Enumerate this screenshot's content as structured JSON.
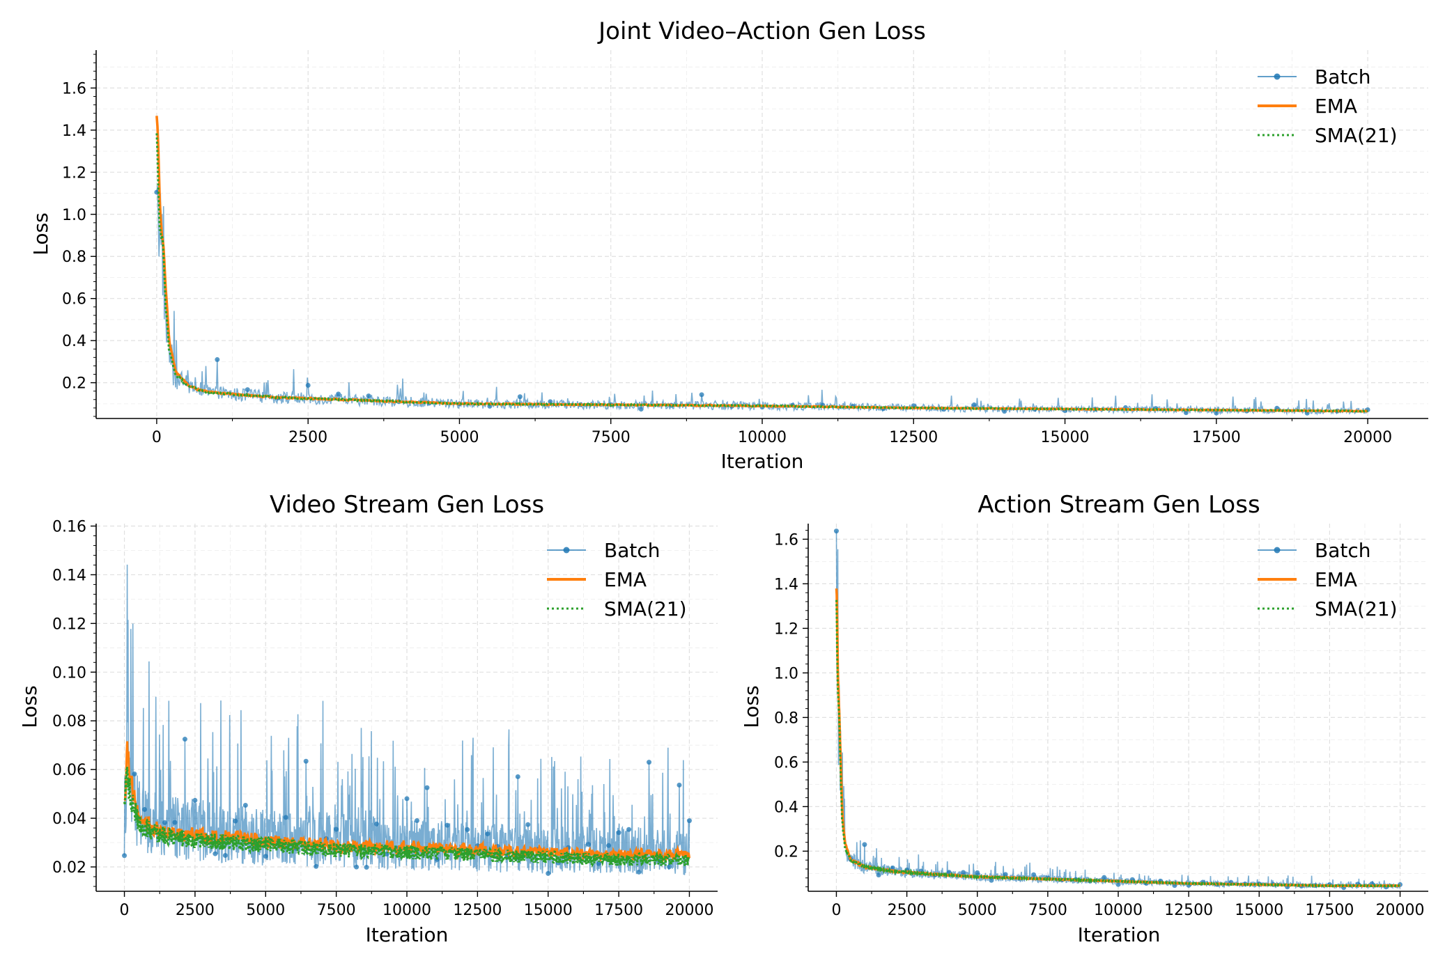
{
  "colors": {
    "batch": "#1f77b4",
    "ema": "#ff7f0e",
    "sma": "#2ca02c",
    "grid": "#e0e0e0"
  },
  "chart_data": [
    {
      "type": "line",
      "title": "Joint Video–Action Gen Loss",
      "xlabel": "Iteration",
      "ylabel": "Loss",
      "xlim": [
        -1000,
        21000
      ],
      "ylim": [
        0.03,
        1.78
      ],
      "xticks": [
        0,
        2500,
        5000,
        7500,
        10000,
        12500,
        15000,
        17500,
        20000
      ],
      "yticks": [
        0.2,
        0.4,
        0.6,
        0.8,
        1.0,
        1.2,
        1.4,
        1.6
      ],
      "grid": true,
      "legend_position": "top-right",
      "series": [
        {
          "name": "Batch",
          "style": "thin line with circle markers",
          "x": [
            0,
            50,
            100,
            150,
            200,
            300,
            500,
            750,
            1000,
            2000,
            3000,
            5000,
            7500,
            10000,
            12500,
            15000,
            17500,
            20000
          ],
          "values": [
            1.39,
            0.92,
            0.88,
            0.55,
            0.36,
            0.24,
            0.19,
            0.16,
            0.15,
            0.13,
            0.12,
            0.1,
            0.095,
            0.09,
            0.08,
            0.075,
            0.07,
            0.065
          ]
        },
        {
          "name": "EMA",
          "x": [
            0,
            50,
            100,
            150,
            200,
            300,
            500,
            750,
            1000,
            2000,
            3000,
            5000,
            7500,
            10000,
            12500,
            15000,
            17500,
            20000
          ],
          "values": [
            1.46,
            0.95,
            0.86,
            0.58,
            0.38,
            0.25,
            0.19,
            0.16,
            0.15,
            0.13,
            0.12,
            0.1,
            0.095,
            0.09,
            0.08,
            0.075,
            0.07,
            0.065
          ]
        },
        {
          "name": "SMA(21)",
          "x": [
            0,
            50,
            100,
            150,
            200,
            300,
            500,
            750,
            1000,
            2000,
            3000,
            5000,
            7500,
            10000,
            12500,
            15000,
            17500,
            20000
          ],
          "values": [
            1.38,
            0.93,
            0.87,
            0.56,
            0.37,
            0.24,
            0.19,
            0.16,
            0.15,
            0.13,
            0.12,
            0.1,
            0.095,
            0.09,
            0.08,
            0.075,
            0.07,
            0.065
          ]
        }
      ]
    },
    {
      "type": "line",
      "title": "Video Stream Gen Loss",
      "xlabel": "Iteration",
      "ylabel": "Loss",
      "xlim": [
        -1000,
        21000
      ],
      "ylim": [
        0.01,
        0.161
      ],
      "xticks": [
        0,
        2500,
        5000,
        7500,
        10000,
        12500,
        15000,
        17500,
        20000
      ],
      "yticks": [
        0.02,
        0.04,
        0.06,
        0.08,
        0.1,
        0.12,
        0.14,
        0.16
      ],
      "grid": true,
      "legend_position": "top-right",
      "series": [
        {
          "name": "Batch",
          "style": "thin line with circle markers",
          "x": [
            0,
            100,
            200,
            500,
            1000,
            2500,
            5000,
            7500,
            10000,
            12500,
            15000,
            17500,
            20000
          ],
          "values": [
            0.037,
            0.065,
            0.05,
            0.04,
            0.036,
            0.034,
            0.031,
            0.03,
            0.028,
            0.027,
            0.026,
            0.026,
            0.025
          ]
        },
        {
          "name": "EMA",
          "x": [
            0,
            100,
            200,
            500,
            1000,
            2500,
            5000,
            7500,
            10000,
            12500,
            15000,
            17500,
            20000
          ],
          "values": [
            0.05,
            0.07,
            0.055,
            0.04,
            0.036,
            0.033,
            0.031,
            0.029,
            0.028,
            0.027,
            0.026,
            0.025,
            0.025
          ]
        },
        {
          "name": "SMA(21)",
          "x": [
            0,
            100,
            200,
            500,
            1000,
            2500,
            5000,
            7500,
            10000,
            12500,
            15000,
            17500,
            20000
          ],
          "values": [
            0.045,
            0.06,
            0.05,
            0.038,
            0.034,
            0.031,
            0.029,
            0.027,
            0.026,
            0.025,
            0.024,
            0.023,
            0.023
          ]
        }
      ]
    },
    {
      "type": "line",
      "title": "Action Stream Gen Loss",
      "xlabel": "Iteration",
      "ylabel": "Loss",
      "xlim": [
        -1000,
        21000
      ],
      "ylim": [
        0.02,
        1.67
      ],
      "xticks": [
        0,
        2500,
        5000,
        7500,
        10000,
        12500,
        15000,
        17500,
        20000
      ],
      "yticks": [
        0.2,
        0.4,
        0.6,
        0.8,
        1.0,
        1.2,
        1.4,
        1.6
      ],
      "grid": true,
      "legend_position": "top-right",
      "series": [
        {
          "name": "Batch",
          "style": "thin line with circle markers",
          "x": [
            0,
            50,
            100,
            150,
            200,
            300,
            500,
            1000,
            2000,
            3000,
            5000,
            7500,
            10000,
            12500,
            15000,
            17500,
            20000
          ],
          "values": [
            1.35,
            0.9,
            0.8,
            0.55,
            0.33,
            0.22,
            0.16,
            0.13,
            0.11,
            0.1,
            0.085,
            0.075,
            0.065,
            0.055,
            0.05,
            0.045,
            0.045
          ]
        },
        {
          "name": "EMA",
          "x": [
            0,
            50,
            100,
            150,
            200,
            300,
            500,
            1000,
            2000,
            3000,
            5000,
            7500,
            10000,
            12500,
            15000,
            17500,
            20000
          ],
          "values": [
            1.4,
            0.92,
            0.8,
            0.57,
            0.35,
            0.23,
            0.16,
            0.13,
            0.11,
            0.1,
            0.085,
            0.075,
            0.065,
            0.055,
            0.05,
            0.045,
            0.045
          ]
        },
        {
          "name": "SMA(21)",
          "x": [
            0,
            50,
            100,
            150,
            200,
            300,
            500,
            1000,
            2000,
            3000,
            5000,
            7500,
            10000,
            12500,
            15000,
            17500,
            20000
          ],
          "values": [
            1.34,
            0.9,
            0.79,
            0.56,
            0.34,
            0.22,
            0.16,
            0.13,
            0.11,
            0.1,
            0.085,
            0.075,
            0.065,
            0.055,
            0.05,
            0.045,
            0.045
          ]
        }
      ]
    }
  ]
}
